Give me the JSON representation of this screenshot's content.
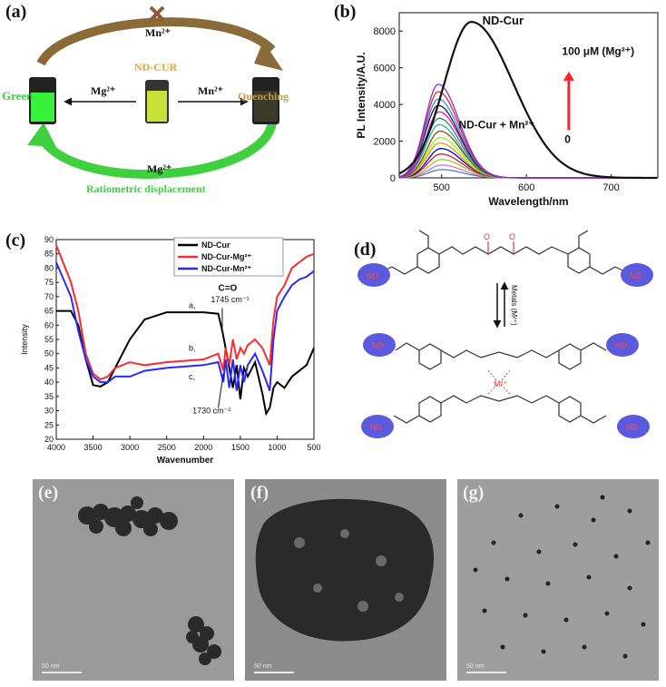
{
  "panel_a": {
    "label": "(a)",
    "mn_top": "Mn²⁺",
    "center_label": "ND-CUR",
    "mg_left_arrow": "Mg²⁺",
    "mn_right_arrow": "Mn²⁺",
    "green": "Green",
    "quenching": "Quenching",
    "mg_bottom": "Mg²⁺",
    "ratiometric": "Ratiometric displacement",
    "colors": {
      "brown": "#8b6a3a",
      "orange": "#e8a23a",
      "green": "#3fcf3f",
      "vial_green": "#39f23a",
      "vial_yellow": "#c8e03a"
    }
  },
  "panel_b": {
    "label": "(b)",
    "annot_ndcur": "ND-Cur",
    "annot_conc": "100 μM (Mg²⁺)",
    "annot_mn": "ND-Cur + Mn²⁺",
    "annot_zero": "0"
  },
  "panel_c": {
    "label": "(c)",
    "co_label": "C=O",
    "peak1": "1745 cm⁻¹",
    "peak2": "1730 cm⁻¹",
    "curve_a": "a,",
    "curve_b": "b,",
    "curve_c": "c,"
  },
  "panel_d": {
    "label": "(d)",
    "nd": "ND",
    "metal_arrow": "Metals (M²⁺)",
    "metal_center": "M²⁺",
    "o": "O"
  },
  "tem": {
    "e": "(e)",
    "f": "(f)",
    "g": "(g)",
    "scalebar": "50 nm"
  },
  "chart_data": [
    {
      "type": "line",
      "title": "",
      "xlabel": "Wavelength/nm",
      "ylabel": "PL Intensity/A.U.",
      "xlim": [
        450,
        755
      ],
      "ylim": [
        0,
        9000
      ],
      "xticks": [
        500,
        600,
        700
      ],
      "yticks": [
        0,
        2000,
        4000,
        6000,
        8000
      ],
      "series": [
        {
          "name": "ND-Cur",
          "color": "#111111",
          "peak_x": 535,
          "peak_y": 8500,
          "width_left": 45,
          "width_right": 70
        },
        {
          "color": "#8a2be2",
          "peak_x": 496,
          "peak_y": 5100,
          "width_left": 22,
          "width_right": 35
        },
        {
          "color": "#ff2020",
          "peak_x": 496,
          "peak_y": 4700,
          "width_left": 22,
          "width_right": 35
        },
        {
          "color": "#1e90ff",
          "peak_x": 496,
          "peak_y": 4300,
          "width_left": 22,
          "width_right": 35
        },
        {
          "color": "#222222",
          "peak_x": 496,
          "peak_y": 3950,
          "width_left": 22,
          "width_right": 35
        },
        {
          "color": "#ff00ff",
          "peak_x": 497,
          "peak_y": 3600,
          "width_left": 22,
          "width_right": 35
        },
        {
          "color": "#2e8b57",
          "peak_x": 497,
          "peak_y": 3250,
          "width_left": 22,
          "width_right": 35
        },
        {
          "color": "#20b2aa",
          "peak_x": 497,
          "peak_y": 2900,
          "width_left": 22,
          "width_right": 35
        },
        {
          "color": "#8b4513",
          "peak_x": 498,
          "peak_y": 2550,
          "width_left": 22,
          "width_right": 35
        },
        {
          "color": "#7fff00",
          "peak_x": 498,
          "peak_y": 2200,
          "width_left": 22,
          "width_right": 35
        },
        {
          "color": "#ff8c00",
          "peak_x": 498,
          "peak_y": 1900,
          "width_left": 22,
          "width_right": 35
        },
        {
          "color": "#0000cd",
          "peak_x": 499,
          "peak_y": 1600,
          "width_left": 22,
          "width_right": 35
        },
        {
          "color": "#dc143c",
          "peak_x": 499,
          "peak_y": 1300,
          "width_left": 22,
          "width_right": 35
        },
        {
          "color": "#9acd32",
          "peak_x": 500,
          "peak_y": 1000,
          "width_left": 22,
          "width_right": 35
        },
        {
          "color": "#da70d6",
          "peak_x": 500,
          "peak_y": 700,
          "width_left": 22,
          "width_right": 35
        },
        {
          "color": "#4682b4",
          "peak_x": 500,
          "peak_y": 450,
          "width_left": 22,
          "width_right": 35
        }
      ]
    },
    {
      "type": "line",
      "title": "",
      "xlabel": "Wavenumber",
      "ylabel": "Intensity",
      "xlim": [
        4000,
        500
      ],
      "ylim": [
        20,
        90
      ],
      "xticks": [
        4000,
        3500,
        3000,
        2500,
        2000,
        1500,
        1000,
        500
      ],
      "yticks": [
        20,
        25,
        30,
        35,
        40,
        45,
        50,
        55,
        60,
        65,
        70,
        75,
        80,
        85,
        90
      ],
      "legend_position": "top-right",
      "series": [
        {
          "name": "ND-Cur",
          "color": "#000000",
          "points": [
            [
              4000,
              65
            ],
            [
              3800,
              65
            ],
            [
              3700,
              60
            ],
            [
              3600,
              48
            ],
            [
              3500,
              39
            ],
            [
              3400,
              38.5
            ],
            [
              3300,
              40
            ],
            [
              3200,
              45
            ],
            [
              3000,
              55
            ],
            [
              2800,
              62
            ],
            [
              2500,
              64.5
            ],
            [
              2000,
              64.5
            ],
            [
              1800,
              64
            ],
            [
              1745,
              58
            ],
            [
              1700,
              52
            ],
            [
              1650,
              45
            ],
            [
              1600,
              38
            ],
            [
              1550,
              46
            ],
            [
              1500,
              34
            ],
            [
              1450,
              45
            ],
            [
              1400,
              42
            ],
            [
              1300,
              47
            ],
            [
              1200,
              36
            ],
            [
              1150,
              29
            ],
            [
              1100,
              31
            ],
            [
              1050,
              38
            ],
            [
              1000,
              40
            ],
            [
              900,
              38
            ],
            [
              800,
              42
            ],
            [
              700,
              44
            ],
            [
              600,
              46
            ],
            [
              500,
              52
            ]
          ]
        },
        {
          "name": "ND-Cur-Mg²⁺",
          "color": "#ff2a2a",
          "points": [
            [
              4000,
              88
            ],
            [
              3800,
              75
            ],
            [
              3700,
              65
            ],
            [
              3600,
              50
            ],
            [
              3500,
              43
            ],
            [
              3400,
              41
            ],
            [
              3300,
              42
            ],
            [
              3200,
              45
            ],
            [
              3000,
              47
            ],
            [
              2800,
              46
            ],
            [
              2500,
              47
            ],
            [
              2000,
              48
            ],
            [
              1800,
              50
            ],
            [
              1730,
              44
            ],
            [
              1700,
              52
            ],
            [
              1650,
              46
            ],
            [
              1600,
              55
            ],
            [
              1550,
              48
            ],
            [
              1500,
              52
            ],
            [
              1450,
              50
            ],
            [
              1400,
              53
            ],
            [
              1300,
              55
            ],
            [
              1200,
              52
            ],
            [
              1100,
              46
            ],
            [
              1050,
              62
            ],
            [
              1000,
              70
            ],
            [
              900,
              74
            ],
            [
              800,
              80
            ],
            [
              700,
              82
            ],
            [
              600,
              84
            ],
            [
              500,
              85
            ]
          ]
        },
        {
          "name": "ND-Cur-Mn²⁺",
          "color": "#2a2aff",
          "points": [
            [
              4000,
              82
            ],
            [
              3800,
              70
            ],
            [
              3700,
              58
            ],
            [
              3600,
              48
            ],
            [
              3500,
              42
            ],
            [
              3400,
              40
            ],
            [
              3300,
              40
            ],
            [
              3200,
              42
            ],
            [
              3000,
              42
            ],
            [
              2800,
              44
            ],
            [
              2500,
              45
            ],
            [
              2000,
              46
            ],
            [
              1800,
              47
            ],
            [
              1730,
              40
            ],
            [
              1700,
              48
            ],
            [
              1650,
              38
            ],
            [
              1600,
              48
            ],
            [
              1550,
              37
            ],
            [
              1500,
              46
            ],
            [
              1450,
              40
            ],
            [
              1400,
              46
            ],
            [
              1300,
              50
            ],
            [
              1200,
              44
            ],
            [
              1100,
              37
            ],
            [
              1050,
              55
            ],
            [
              1000,
              65
            ],
            [
              900,
              70
            ],
            [
              800,
              74
            ],
            [
              700,
              76
            ],
            [
              600,
              77
            ],
            [
              500,
              79
            ]
          ]
        }
      ]
    }
  ]
}
